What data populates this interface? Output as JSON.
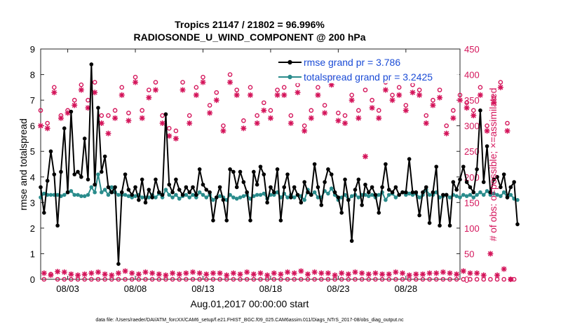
{
  "chart_data": {
    "type": "line",
    "title": "Tropics 21147 / 21802 = 96.996%",
    "subtitle": "RADIOSONDE_U_WIND_COMPONENT @ 200 hPa",
    "xlabel": "Aug.01,2017 00:00:00 start",
    "ylabel_left": "rmse and totalspread",
    "ylabel_right": "# of obs: o=possible; ×=assimilated",
    "xlim": [
      1.0,
      32.0
    ],
    "ylim_left": [
      0,
      9
    ],
    "ylim_right": [
      0,
      450
    ],
    "yticks_left": [
      0,
      1,
      2,
      3,
      4,
      5,
      6,
      7,
      8,
      9
    ],
    "yticks_right": [
      0,
      50,
      100,
      150,
      200,
      250,
      300,
      350,
      400,
      450
    ],
    "x_ticks": [
      {
        "x": 3.0,
        "label": "08/03"
      },
      {
        "x": 8.0,
        "label": "08/08"
      },
      {
        "x": 13.0,
        "label": "08/13"
      },
      {
        "x": 18.0,
        "label": "08/18"
      },
      {
        "x": 23.0,
        "label": "08/23"
      },
      {
        "x": 28.0,
        "label": "08/28"
      }
    ],
    "x_start": 1.0,
    "x_step": 0.25,
    "legend": [
      "rmse grand pr = 3.786",
      "totalspread grand pr = 3.2425"
    ],
    "series": [
      {
        "name": "rmse",
        "axis": "left",
        "color": "#000000",
        "values": [
          3.6,
          2.6,
          3.85,
          5.0,
          4.1,
          2.1,
          4.2,
          5.9,
          3.4,
          6.55,
          4.1,
          4.2,
          4.0,
          5.5,
          3.9,
          8.4,
          3.7,
          6.7,
          4.2,
          4.8,
          3.6,
          3.4,
          3.6,
          0.6,
          3.4,
          4.1,
          3.5,
          3.3,
          3.6,
          3.1,
          3.9,
          3.0,
          3.5,
          3.2,
          3.9,
          3.4,
          3.3,
          6.45,
          3.7,
          3.4,
          3.9,
          3.5,
          3.3,
          3.6,
          3.4,
          3.6,
          3.3,
          4.3,
          3.7,
          3.5,
          3.4,
          2.3,
          3.2,
          3.6,
          3.1,
          2.3,
          4.3,
          4.2,
          3.6,
          4.2,
          3.8,
          3.4,
          2.3,
          4.2,
          3.7,
          4.4,
          4.1,
          3.0,
          3.6,
          3.4,
          4.3,
          2.3,
          3.6,
          4.1,
          3.2,
          3.6,
          3.3,
          3.0,
          3.8,
          3.4,
          3.3,
          4.5,
          3.6,
          2.9,
          3.8,
          4.3,
          4.1,
          3.4,
          3.2,
          2.6,
          3.9,
          3.1,
          1.5,
          3.5,
          3.9,
          2.9,
          3.7,
          3.4,
          3.6,
          3.3,
          2.6,
          3.6,
          4.5,
          3.5,
          3.4,
          3.6,
          3.3,
          3.4,
          3.4,
          4.7,
          3.4,
          3.4,
          2.5,
          3.4,
          3.6,
          2.2,
          3.4,
          4.4,
          2.1,
          3.3,
          3.3,
          2.1,
          3.8,
          3.5,
          3.9,
          4.4,
          3.8,
          3.6,
          3.4,
          4.3,
          6.6,
          3.8,
          5.2,
          3.4,
          3.9,
          4.0,
          3.6,
          4.1,
          3.2,
          3.6,
          3.8,
          2.15
        ]
      },
      {
        "name": "totalspread",
        "axis": "left",
        "color": "#2a8c8c",
        "values": [
          3.2,
          3.35,
          3.3,
          3.3,
          3.3,
          3.3,
          3.25,
          3.3,
          3.4,
          3.45,
          3.3,
          3.3,
          3.25,
          3.25,
          3.3,
          3.6,
          3.4,
          4.1,
          3.4,
          3.5,
          3.3,
          3.6,
          3.4,
          3.3,
          3.3,
          3.3,
          3.25,
          3.2,
          3.25,
          3.3,
          3.2,
          3.2,
          3.2,
          3.3,
          3.2,
          3.35,
          3.2,
          3.5,
          3.3,
          3.2,
          3.3,
          3.15,
          3.25,
          3.3,
          3.2,
          3.3,
          3.2,
          3.4,
          3.3,
          3.2,
          3.3,
          3.1,
          3.2,
          3.25,
          3.2,
          3.1,
          3.3,
          3.2,
          3.15,
          3.2,
          3.25,
          3.3,
          3.15,
          3.25,
          3.3,
          3.3,
          3.35,
          3.15,
          3.3,
          3.3,
          3.4,
          3.2,
          3.35,
          3.2,
          3.3,
          3.2,
          3.3,
          3.25,
          3.1,
          3.5,
          3.3,
          3.4,
          3.2,
          3.2,
          3.45,
          3.35,
          3.55,
          3.3,
          3.1,
          3.2,
          3.3,
          3.1,
          3.25,
          3.3,
          3.2,
          3.3,
          3.3,
          3.25,
          3.3,
          3.2,
          3.3,
          3.4,
          3.1,
          3.3,
          3.35,
          3.2,
          3.3,
          3.4,
          3.3,
          3.35,
          3.3,
          3.35,
          3.2,
          3.3,
          3.5,
          3.3,
          3.3,
          3.4,
          3.2,
          3.25,
          3.3,
          3.2,
          3.3,
          3.25,
          3.2,
          3.3,
          3.25,
          3.3,
          3.2,
          3.3,
          3.4,
          3.3,
          3.45,
          3.3,
          3.35,
          3.3,
          3.25,
          3.4,
          3.2,
          3.3,
          3.15,
          3.1
        ]
      },
      {
        "name": "possible",
        "axis": "right",
        "color": "#d4145a",
        "marker": "o",
        "values": [
          330,
          0,
          305,
          10,
          375,
          0,
          320,
          0,
          330,
          0,
          350,
          0,
          380,
          0,
          350,
          0,
          385,
          0,
          320,
          0,
          320,
          0,
          330,
          0,
          375,
          0,
          325,
          0,
          395,
          0,
          330,
          0,
          370,
          0,
          385,
          0,
          320,
          0,
          295,
          0,
          290,
          0,
          385,
          0,
          320,
          0,
          375,
          0,
          395,
          0,
          340,
          0,
          365,
          0,
          300,
          0,
          400,
          0,
          370,
          0,
          310,
          0,
          375,
          0,
          320,
          0,
          345,
          0,
          330,
          0,
          370,
          0,
          375,
          0,
          320,
          0,
          380,
          0,
          300,
          0,
          330,
          0,
          375,
          0,
          340,
          0,
          395,
          0,
          325,
          0,
          320,
          0,
          360,
          0,
          330,
          0,
          370,
          0,
          350,
          0,
          330,
          0,
          385,
          0,
          360,
          0,
          375,
          0,
          340,
          0,
          380,
          0,
          370,
          0,
          320,
          0,
          350,
          0,
          370,
          0,
          300,
          0,
          330,
          0,
          360,
          0,
          345,
          0,
          330,
          0,
          375,
          0,
          300,
          0,
          355,
          0,
          385,
          0,
          305,
          0,
          0
        ]
      },
      {
        "name": "assimilated",
        "axis": "right",
        "color": "#d4145a",
        "marker": "x",
        "values": [
          300,
          12,
          295,
          8,
          365,
          15,
          315,
          14,
          325,
          10,
          340,
          8,
          370,
          10,
          335,
          12,
          365,
          14,
          305,
          10,
          285,
          8,
          315,
          12,
          360,
          16,
          310,
          12,
          385,
          10,
          315,
          14,
          355,
          12,
          370,
          10,
          305,
          8,
          280,
          12,
          275,
          10,
          370,
          12,
          305,
          14,
          360,
          12,
          385,
          10,
          325,
          12,
          350,
          12,
          290,
          8,
          385,
          12,
          360,
          10,
          295,
          14,
          360,
          10,
          305,
          12,
          330,
          8,
          315,
          12,
          360,
          10,
          360,
          14,
          305,
          12,
          365,
          16,
          290,
          10,
          315,
          14,
          360,
          12,
          325,
          12,
          380,
          8,
          310,
          12,
          305,
          10,
          350,
          14,
          315,
          12,
          240,
          10,
          335,
          12,
          315,
          10,
          370,
          10,
          350,
          14,
          360,
          12,
          330,
          8,
          365,
          10,
          360,
          10,
          305,
          12,
          340,
          12,
          355,
          14,
          285,
          12,
          315,
          10,
          350,
          16,
          335,
          12,
          320,
          12,
          360,
          8,
          290,
          50,
          345,
          8,
          375,
          20,
          290,
          0
        ]
      }
    ]
  },
  "footer": "data file: /Users/raeder/DAI/ATM_forcXX/CAM6_setup/f.e21.FHIST_BGC.f09_025.CAM6assim.011/Diags_NTrS_2017-08/obs_diag_output.nc"
}
